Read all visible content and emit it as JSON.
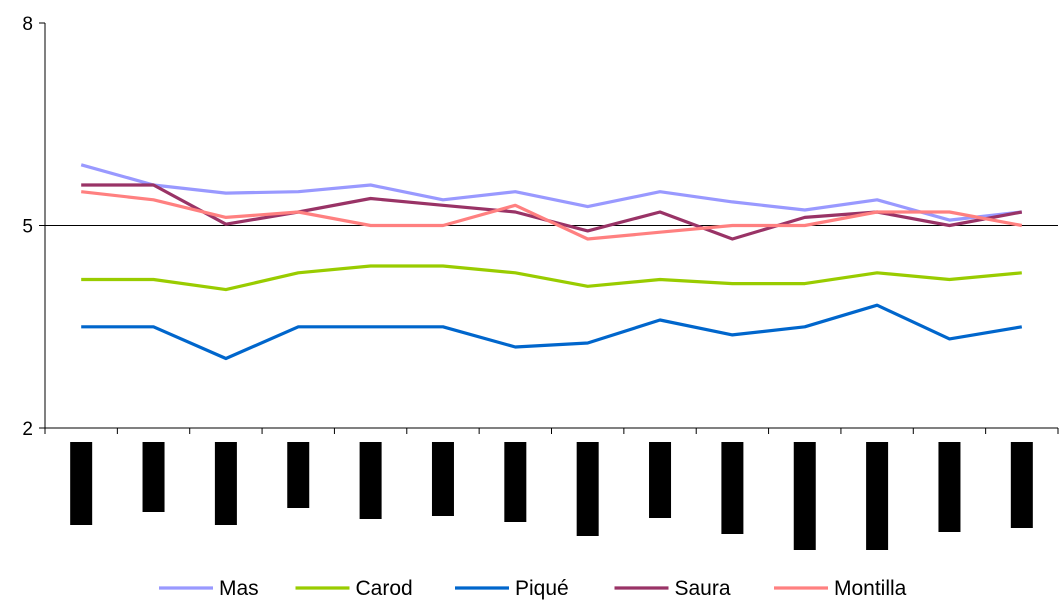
{
  "chart_data": {
    "type": "line",
    "ylim": [
      2,
      8
    ],
    "yticks": [
      2,
      5,
      8
    ],
    "grid": "horizontal line at 5",
    "legend_position": "bottom",
    "x_count": 14,
    "series": [
      {
        "name": "Mas",
        "color": "#9999FF",
        "values": [
          5.9,
          5.6,
          5.48,
          5.5,
          5.6,
          5.38,
          5.5,
          5.28,
          5.5,
          5.35,
          5.23,
          5.38,
          5.08,
          5.2
        ]
      },
      {
        "name": "Carod",
        "color": "#99CC00",
        "values": [
          4.2,
          4.2,
          4.05,
          4.3,
          4.4,
          4.4,
          4.3,
          4.1,
          4.2,
          4.14,
          4.14,
          4.3,
          4.2,
          4.3
        ]
      },
      {
        "name": "Piqué",
        "color": "#0066CC",
        "values": [
          3.5,
          3.5,
          3.03,
          3.5,
          3.5,
          3.5,
          3.2,
          3.26,
          3.6,
          3.38,
          3.5,
          3.82,
          3.32,
          3.5
        ]
      },
      {
        "name": "Saura",
        "color": "#993366",
        "values": [
          5.6,
          5.6,
          5.02,
          5.2,
          5.4,
          5.3,
          5.2,
          4.92,
          5.2,
          4.8,
          5.12,
          5.2,
          5.0,
          5.2
        ]
      },
      {
        "name": "Montilla",
        "color": "#FF8080",
        "values": [
          5.5,
          5.38,
          5.12,
          5.2,
          5.0,
          5.0,
          5.3,
          4.8,
          4.9,
          5.0,
          5.0,
          5.2,
          5.2,
          5.0
        ]
      }
    ]
  }
}
